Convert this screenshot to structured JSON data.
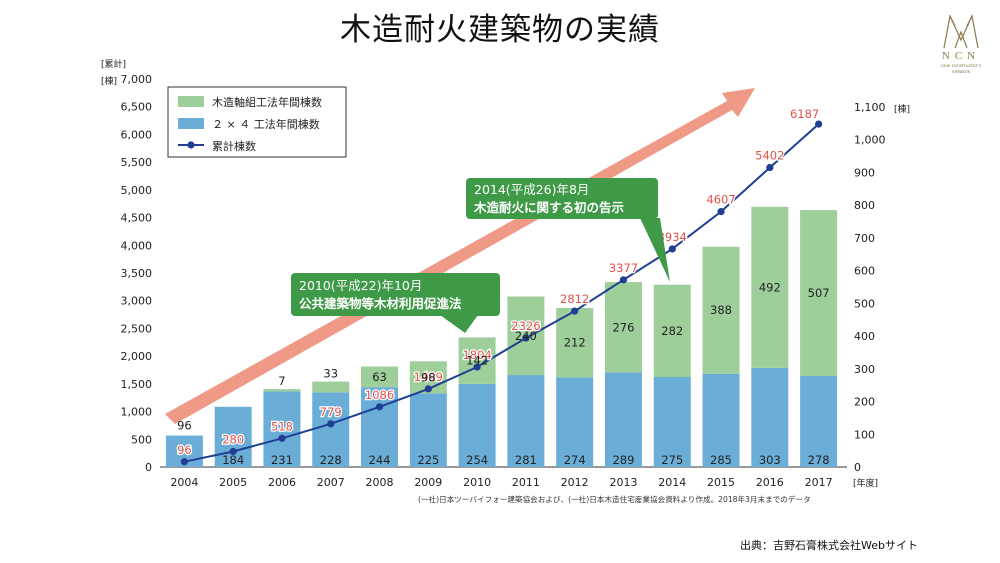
{
  "page": {
    "title": "木造耐火建築物の実績",
    "credit": "出典：吉野石膏株式会社Webサイト",
    "logo": {
      "text": "NCN",
      "sub": "new constructor's network",
      "color": "#8c7a4e"
    }
  },
  "chart_data": {
    "type": "bar",
    "stacked": true,
    "categories": [
      "2004",
      "2005",
      "2006",
      "2007",
      "2008",
      "2009",
      "2010",
      "2011",
      "2012",
      "2013",
      "2014",
      "2015",
      "2016",
      "2017"
    ],
    "series": [
      {
        "name": "２ × ４ 工法年間棟数",
        "kind": "bar",
        "axis": "right",
        "color": "#6aaed8",
        "values": [
          96,
          184,
          231,
          228,
          244,
          225,
          254,
          281,
          274,
          289,
          275,
          285,
          303,
          278
        ]
      },
      {
        "name": "木造軸組工法年間棟数",
        "kind": "bar",
        "axis": "right",
        "color": "#9ecf9a",
        "values": [
          0,
          0,
          7,
          33,
          63,
          98,
          142,
          240,
          212,
          276,
          282,
          388,
          492,
          507
        ]
      },
      {
        "name": "累計棟数",
        "kind": "line",
        "axis": "left",
        "color": "#1f3f93",
        "values": [
          96,
          280,
          518,
          779,
          1086,
          1409,
          1804,
          2326,
          2812,
          3377,
          3934,
          4607,
          5402,
          6187
        ]
      }
    ],
    "bar_labels": {
      "bottom": [
        "",
        "184",
        "231",
        "228",
        "244",
        "225",
        "254",
        "281",
        "274",
        "289",
        "275",
        "285",
        "303",
        "278"
      ],
      "top": [
        "96",
        "",
        "7",
        "33",
        "63",
        "98",
        "142",
        "240",
        "212",
        "276",
        "282",
        "388",
        "492",
        "507"
      ]
    },
    "y_left": {
      "label_1": "[累計]",
      "label_2": "[棟]",
      "min": 0,
      "max": 7000,
      "ticks": [
        "0",
        "500",
        "1,000",
        "1,500",
        "2,000",
        "2,500",
        "3,000",
        "3,500",
        "4,000",
        "4,500",
        "5,000",
        "5,500",
        "6,000",
        "6,500",
        "7,000"
      ]
    },
    "y_right": {
      "label": "[棟]",
      "min": 0,
      "max": 1100,
      "ticks": [
        "0",
        "100",
        "200",
        "300",
        "400",
        "500",
        "600",
        "700",
        "800",
        "900",
        "1,000",
        "1,100"
      ]
    },
    "x_unit": "[年度]",
    "annotations": [
      {
        "category": "2010",
        "line1": "2010(平成22)年10月",
        "line2": "公共建築物等木材利用促進法"
      },
      {
        "category": "2014",
        "line1": "2014(平成26)年8月",
        "line2": "木造耐火に関する初の告示"
      }
    ],
    "source_note": "(一社)日本ツーバイフォー建築協会および、(一社)日本木造住宅産業協会資料より作成。2018年3月末までのデータ",
    "colors": {
      "arrow": "#ee9a86",
      "callout": "#3f9a47",
      "line_label": "#e0534a"
    },
    "legend_position": "top-left",
    "grid": false
  }
}
